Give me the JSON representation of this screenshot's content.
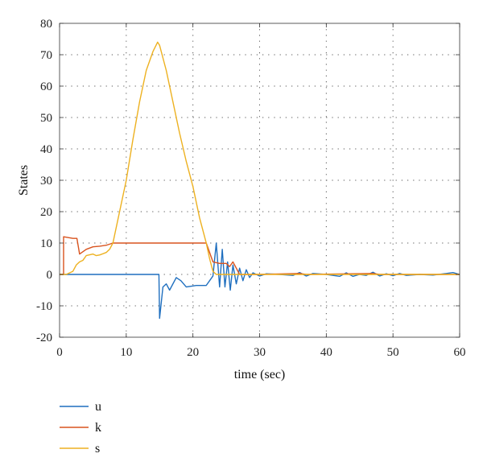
{
  "chart_data": {
    "type": "line",
    "title": "",
    "xlabel": "time (sec)",
    "ylabel": "States",
    "xlim": [
      0,
      60
    ],
    "ylim": [
      -20,
      80
    ],
    "xticks": [
      0,
      10,
      20,
      30,
      40,
      50,
      60
    ],
    "yticks": [
      -20,
      -10,
      0,
      10,
      20,
      30,
      40,
      50,
      60,
      70,
      80
    ],
    "grid": "dotted",
    "legend_position": "below",
    "series": [
      {
        "name": "u",
        "color": "#1f6fbf",
        "points": [
          [
            0,
            0
          ],
          [
            14.9,
            0
          ],
          [
            15.0,
            -14
          ],
          [
            15.5,
            -4
          ],
          [
            16,
            -3
          ],
          [
            16.5,
            -5
          ],
          [
            17.5,
            -1
          ],
          [
            18.2,
            -2
          ],
          [
            19,
            -4
          ],
          [
            20.5,
            -3.5
          ],
          [
            22,
            -3.5
          ],
          [
            23,
            -0.5
          ],
          [
            23.5,
            10
          ],
          [
            24,
            -4
          ],
          [
            24.4,
            8
          ],
          [
            24.8,
            -4
          ],
          [
            25.2,
            4
          ],
          [
            25.6,
            -5
          ],
          [
            26,
            3
          ],
          [
            26.5,
            -3
          ],
          [
            27,
            2
          ],
          [
            27.5,
            -2
          ],
          [
            28,
            1.5
          ],
          [
            28.5,
            -1
          ],
          [
            29,
            0.5
          ],
          [
            30,
            -0.5
          ],
          [
            31,
            0.2
          ],
          [
            33,
            0
          ],
          [
            35,
            -0.3
          ],
          [
            36,
            0.6
          ],
          [
            37,
            -0.5
          ],
          [
            38,
            0.3
          ],
          [
            40,
            0
          ],
          [
            42,
            -0.6
          ],
          [
            43,
            0.5
          ],
          [
            44,
            -0.6
          ],
          [
            45,
            0
          ],
          [
            46,
            -0.3
          ],
          [
            47,
            0.7
          ],
          [
            48,
            -0.5
          ],
          [
            49,
            0.2
          ],
          [
            50,
            -0.4
          ],
          [
            51,
            0.3
          ],
          [
            52,
            -0.3
          ],
          [
            54,
            0
          ],
          [
            56,
            -0.2
          ],
          [
            58,
            0.3
          ],
          [
            59,
            0.6
          ],
          [
            60,
            0
          ]
        ]
      },
      {
        "name": "k",
        "color": "#d9531e",
        "points": [
          [
            0,
            0
          ],
          [
            0.6,
            0
          ],
          [
            0.6,
            12
          ],
          [
            2,
            11.5
          ],
          [
            2.6,
            11.5
          ],
          [
            3,
            6.5
          ],
          [
            4,
            8
          ],
          [
            5,
            8.8
          ],
          [
            6,
            9
          ],
          [
            7,
            9.3
          ],
          [
            8,
            10
          ],
          [
            22,
            10
          ],
          [
            23,
            4
          ],
          [
            24,
            3.5
          ],
          [
            25,
            3.5
          ],
          [
            25.5,
            2.5
          ],
          [
            26,
            4
          ],
          [
            26.5,
            2
          ],
          [
            27,
            0
          ],
          [
            28,
            0
          ],
          [
            30,
            0
          ],
          [
            36,
            0.3
          ],
          [
            37,
            0
          ],
          [
            47,
            0.3
          ],
          [
            48,
            0
          ],
          [
            60,
            0
          ]
        ]
      },
      {
        "name": "s",
        "color": "#edb120",
        "points": [
          [
            0,
            0
          ],
          [
            1,
            0
          ],
          [
            2,
            1
          ],
          [
            2.5,
            3
          ],
          [
            3,
            4
          ],
          [
            3.5,
            4.5
          ],
          [
            4,
            6
          ],
          [
            5,
            6.5
          ],
          [
            5.5,
            6
          ],
          [
            6,
            6.2
          ],
          [
            7,
            7
          ],
          [
            7.5,
            8
          ],
          [
            8,
            10
          ],
          [
            9,
            20
          ],
          [
            10,
            30
          ],
          [
            11,
            43
          ],
          [
            12,
            55
          ],
          [
            13,
            65
          ],
          [
            14,
            71
          ],
          [
            14.7,
            74
          ],
          [
            15,
            73
          ],
          [
            16,
            65
          ],
          [
            17,
            55
          ],
          [
            18,
            45
          ],
          [
            19,
            36
          ],
          [
            20,
            28
          ],
          [
            21,
            18
          ],
          [
            22,
            10
          ],
          [
            22.5,
            5
          ],
          [
            23,
            1
          ],
          [
            23.5,
            0
          ],
          [
            60,
            0
          ]
        ]
      }
    ]
  }
}
